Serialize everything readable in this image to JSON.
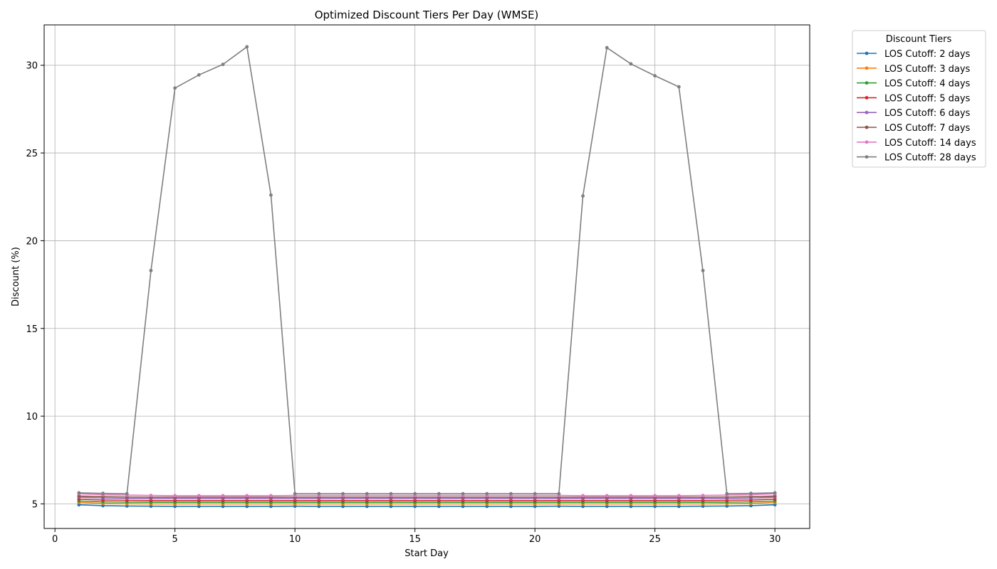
{
  "chart_data": {
    "type": "line",
    "title": "Optimized Discount Tiers Per Day (WMSE)",
    "xlabel": "Start Day",
    "ylabel": "Discount (%)",
    "xlim": [
      -0.45,
      31.45
    ],
    "ylim": [
      3.6,
      32.3
    ],
    "xticks": [
      0,
      5,
      10,
      15,
      20,
      25,
      30
    ],
    "yticks": [
      5,
      10,
      15,
      20,
      25,
      30
    ],
    "grid": true,
    "legend_title": "Discount Tiers",
    "legend_location": "outside top-right",
    "x": [
      1,
      2,
      3,
      4,
      5,
      6,
      7,
      8,
      9,
      10,
      11,
      12,
      13,
      14,
      15,
      16,
      17,
      18,
      19,
      20,
      21,
      22,
      23,
      24,
      25,
      26,
      27,
      28,
      29,
      30
    ],
    "series": [
      {
        "name": "LOS Cutoff: 2 days",
        "color": "#1f77b4",
        "values": [
          4.95,
          4.9,
          4.88,
          4.87,
          4.86,
          4.86,
          4.86,
          4.86,
          4.86,
          4.87,
          4.86,
          4.86,
          4.86,
          4.86,
          4.86,
          4.86,
          4.86,
          4.86,
          4.86,
          4.86,
          4.87,
          4.86,
          4.86,
          4.86,
          4.86,
          4.86,
          4.87,
          4.88,
          4.9,
          4.95
        ]
      },
      {
        "name": "LOS Cutoff: 3 days",
        "color": "#ff7f0e",
        "values": [
          5.08,
          5.03,
          5.01,
          5.0,
          5.0,
          5.0,
          5.0,
          5.0,
          5.0,
          5.0,
          5.0,
          5.0,
          5.0,
          5.0,
          5.0,
          5.0,
          5.0,
          5.0,
          5.0,
          5.0,
          5.0,
          5.0,
          5.0,
          5.0,
          5.0,
          5.0,
          5.0,
          5.01,
          5.03,
          5.08
        ]
      },
      {
        "name": "LOS Cutoff: 4 days",
        "color": "#2ca02c",
        "values": [
          5.16,
          5.12,
          5.1,
          5.09,
          5.09,
          5.09,
          5.09,
          5.09,
          5.09,
          5.09,
          5.09,
          5.09,
          5.09,
          5.09,
          5.09,
          5.09,
          5.09,
          5.09,
          5.09,
          5.09,
          5.09,
          5.09,
          5.09,
          5.09,
          5.09,
          5.09,
          5.09,
          5.1,
          5.12,
          5.16
        ]
      },
      {
        "name": "LOS Cutoff: 5 days",
        "color": "#d62728",
        "values": [
          5.27,
          5.22,
          5.2,
          5.19,
          5.19,
          5.19,
          5.19,
          5.19,
          5.19,
          5.19,
          5.19,
          5.19,
          5.19,
          5.19,
          5.19,
          5.19,
          5.19,
          5.19,
          5.19,
          5.19,
          5.19,
          5.19,
          5.19,
          5.19,
          5.19,
          5.19,
          5.19,
          5.2,
          5.22,
          5.27
        ]
      },
      {
        "name": "LOS Cutoff: 6 days",
        "color": "#9467bd",
        "values": [
          5.38,
          5.33,
          5.31,
          5.3,
          5.3,
          5.3,
          5.3,
          5.3,
          5.3,
          5.3,
          5.3,
          5.3,
          5.3,
          5.3,
          5.3,
          5.3,
          5.3,
          5.3,
          5.3,
          5.3,
          5.3,
          5.3,
          5.3,
          5.3,
          5.3,
          5.3,
          5.3,
          5.31,
          5.33,
          5.38
        ]
      },
      {
        "name": "LOS Cutoff: 7 days",
        "color": "#8c564b",
        "values": [
          5.45,
          5.41,
          5.39,
          5.38,
          5.38,
          5.38,
          5.38,
          5.38,
          5.38,
          5.38,
          5.38,
          5.38,
          5.38,
          5.38,
          5.38,
          5.38,
          5.38,
          5.38,
          5.38,
          5.38,
          5.38,
          5.38,
          5.38,
          5.38,
          5.38,
          5.38,
          5.38,
          5.39,
          5.41,
          5.45
        ]
      },
      {
        "name": "LOS Cutoff: 14 days",
        "color": "#e377c2",
        "values": [
          5.58,
          5.52,
          5.5,
          5.48,
          5.47,
          5.47,
          5.47,
          5.47,
          5.47,
          5.48,
          5.48,
          5.48,
          5.48,
          5.48,
          5.48,
          5.48,
          5.48,
          5.48,
          5.48,
          5.48,
          5.48,
          5.47,
          5.47,
          5.47,
          5.47,
          5.47,
          5.48,
          5.5,
          5.52,
          5.58
        ]
      },
      {
        "name": "LOS Cutoff: 28 days",
        "color": "#7f7f7f",
        "values": [
          5.63,
          5.6,
          5.58,
          18.3,
          28.7,
          29.45,
          30.05,
          31.05,
          22.6,
          5.58,
          5.58,
          5.58,
          5.58,
          5.58,
          5.58,
          5.58,
          5.58,
          5.58,
          5.58,
          5.58,
          5.58,
          22.55,
          31.0,
          30.08,
          29.4,
          28.77,
          18.3,
          5.58,
          5.6,
          5.63
        ]
      }
    ]
  }
}
